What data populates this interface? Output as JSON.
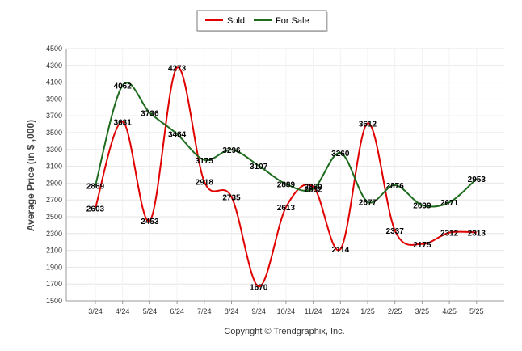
{
  "chart_data": {
    "type": "line",
    "categories": [
      "3/24",
      "4/24",
      "5/24",
      "6/24",
      "7/24",
      "8/24",
      "9/24",
      "10/24",
      "11/24",
      "12/24",
      "1/25",
      "2/25",
      "3/25",
      "4/25",
      "5/25"
    ],
    "series": [
      {
        "name": "Sold",
        "color": "#e00000",
        "values": [
          2603,
          3631,
          2453,
          4273,
          2918,
          2735,
          1670,
          2613,
          2859,
          2114,
          3612,
          2337,
          2175,
          2312,
          2313
        ]
      },
      {
        "name": "For Sale",
        "color": "#1e6b1e",
        "values": [
          2869,
          4062,
          3736,
          3484,
          3175,
          3296,
          3107,
          2889,
          2832,
          3260,
          2677,
          2876,
          2639,
          2671,
          2953
        ]
      }
    ],
    "ylabel": "Average Price (in $ ,000)",
    "ylim": [
      1500,
      4500
    ],
    "yticks": [
      1500,
      1700,
      1900,
      2100,
      2300,
      2500,
      2700,
      2900,
      3100,
      3300,
      3500,
      3700,
      3900,
      4100,
      4300,
      4500
    ],
    "grid": true,
    "legend_position": "top-center",
    "credit": "Copyright © Trendgraphix, Inc."
  }
}
